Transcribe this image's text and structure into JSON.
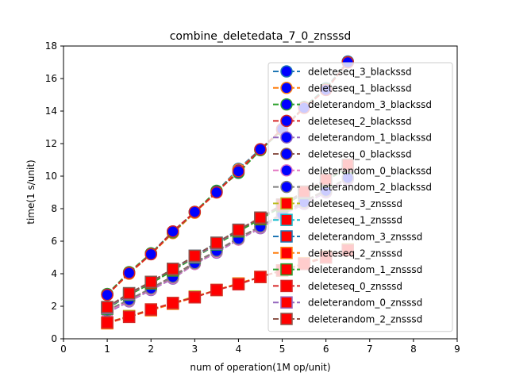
{
  "chart_data": {
    "type": "line",
    "title": "combine_deletedata_7_0_znsssd",
    "xlabel": "num of operation(1M op/unit)",
    "ylabel": "time(1 s/unit)",
    "xlim": [
      0,
      9
    ],
    "ylim": [
      0,
      18
    ],
    "xticks": [
      "0",
      "1",
      "2",
      "3",
      "4",
      "5",
      "6",
      "7",
      "8",
      "9"
    ],
    "yticks": [
      "0",
      "2",
      "4",
      "6",
      "8",
      "10",
      "12",
      "14",
      "16",
      "18"
    ],
    "grid": false,
    "legend_position": "top-right",
    "x": [
      1,
      1.5,
      2,
      2.5,
      3,
      3.5,
      4,
      4.5,
      5,
      5.5,
      6,
      6.5
    ],
    "series": [
      {
        "name": "deleteseq_3_blackssd",
        "line": "#1f77b4",
        "marker": "circle",
        "values": [
          2.75,
          4.05,
          5.25,
          6.6,
          7.8,
          9.05,
          10.45,
          11.65,
          12.9,
          14.25,
          15.4,
          17.05
        ]
      },
      {
        "name": "deleteseq_1_blackssd",
        "line": "#ff7f0e",
        "marker": "circle",
        "values": [
          2.7,
          4.0,
          5.2,
          6.5,
          7.75,
          9.0,
          10.4,
          11.6,
          12.85,
          14.2,
          15.35,
          17.0
        ]
      },
      {
        "name": "deleterandom_3_blackssd",
        "line": "#2ca02c",
        "marker": "circle",
        "values": [
          2.75,
          4.1,
          5.25,
          6.55,
          7.8,
          9.1,
          10.2,
          11.6,
          12.85,
          14.25,
          15.35,
          17.0
        ]
      },
      {
        "name": "deleteseq_2_blackssd",
        "line": "#d62728",
        "marker": "circle",
        "values": [
          2.7,
          4.05,
          5.2,
          6.6,
          7.8,
          9.0,
          10.3,
          11.65,
          12.9,
          14.2,
          15.3,
          17.0
        ]
      },
      {
        "name": "deleterandom_1_blackssd",
        "line": "#9467bd",
        "marker": "circle",
        "values": [
          1.6,
          2.3,
          3.0,
          3.7,
          4.6,
          5.3,
          6.1,
          6.8,
          7.6,
          8.3,
          9.0,
          9.8
        ]
      },
      {
        "name": "deleteseq_0_blackssd",
        "line": "#8c564b",
        "marker": "circle",
        "values": [
          1.7,
          2.4,
          3.1,
          3.85,
          4.7,
          5.4,
          6.2,
          6.9,
          7.7,
          8.45,
          9.15,
          9.9
        ]
      },
      {
        "name": "deleterandom_0_blackssd",
        "line": "#e377c2",
        "marker": "circle",
        "values": [
          1.65,
          2.35,
          3.05,
          3.75,
          4.6,
          5.35,
          6.1,
          6.85,
          7.6,
          8.35,
          9.05,
          9.85
        ]
      },
      {
        "name": "deleterandom_2_blackssd",
        "line": "#7f7f7f",
        "marker": "circle",
        "values": [
          1.75,
          2.4,
          3.1,
          3.8,
          4.65,
          5.4,
          6.15,
          6.9,
          7.65,
          8.4,
          9.1,
          9.9
        ]
      },
      {
        "name": "deleteseq_3_znsssd",
        "line": "#bcbd22",
        "marker": "square",
        "values": [
          1.0,
          1.4,
          1.8,
          2.2,
          2.6,
          3.0,
          3.4,
          3.8,
          4.2,
          4.6,
          5.0,
          5.5
        ]
      },
      {
        "name": "deleteseq_1_znsssd",
        "line": "#17becf",
        "marker": "square",
        "values": [
          1.9,
          2.8,
          3.5,
          4.3,
          5.1,
          5.9,
          6.7,
          7.4,
          8.2,
          9.0,
          9.8,
          10.6
        ]
      },
      {
        "name": "deleterandom_3_znsssd",
        "line": "#1f77b4",
        "marker": "square",
        "values": [
          1.9,
          2.75,
          3.45,
          4.25,
          5.1,
          5.9,
          6.65,
          7.4,
          8.2,
          9.0,
          9.75,
          10.6
        ]
      },
      {
        "name": "deleteseq_2_znsssd",
        "line": "#ff7f0e",
        "marker": "square",
        "values": [
          0.95,
          1.35,
          1.75,
          2.15,
          2.55,
          3.0,
          3.4,
          3.8,
          4.2,
          4.65,
          5.05,
          5.45
        ]
      },
      {
        "name": "deleterandom_1_znsssd",
        "line": "#2ca02c",
        "marker": "square",
        "values": [
          1.85,
          2.7,
          3.4,
          4.2,
          5.0,
          5.8,
          6.6,
          7.35,
          8.15,
          8.95,
          9.7,
          10.55
        ]
      },
      {
        "name": "deleteseq_0_znsssd",
        "line": "#d62728",
        "marker": "square",
        "values": [
          1.0,
          1.35,
          1.8,
          2.2,
          2.55,
          3.0,
          3.35,
          3.8,
          4.2,
          4.6,
          5.0,
          5.45
        ]
      },
      {
        "name": "deleterandom_0_znsssd",
        "line": "#9467bd",
        "marker": "square",
        "values": [
          1.9,
          2.75,
          3.5,
          4.3,
          5.05,
          5.85,
          6.7,
          7.45,
          8.25,
          9.0,
          9.8,
          10.65
        ]
      },
      {
        "name": "deleterandom_2_znsssd",
        "line": "#8c564b",
        "marker": "square",
        "values": [
          1.95,
          2.8,
          3.5,
          4.3,
          5.1,
          5.9,
          6.7,
          7.45,
          8.25,
          9.05,
          9.8,
          10.7
        ]
      }
    ],
    "marker_fill": {
      "circle": "#0000ff",
      "square": "#ff0000"
    }
  }
}
